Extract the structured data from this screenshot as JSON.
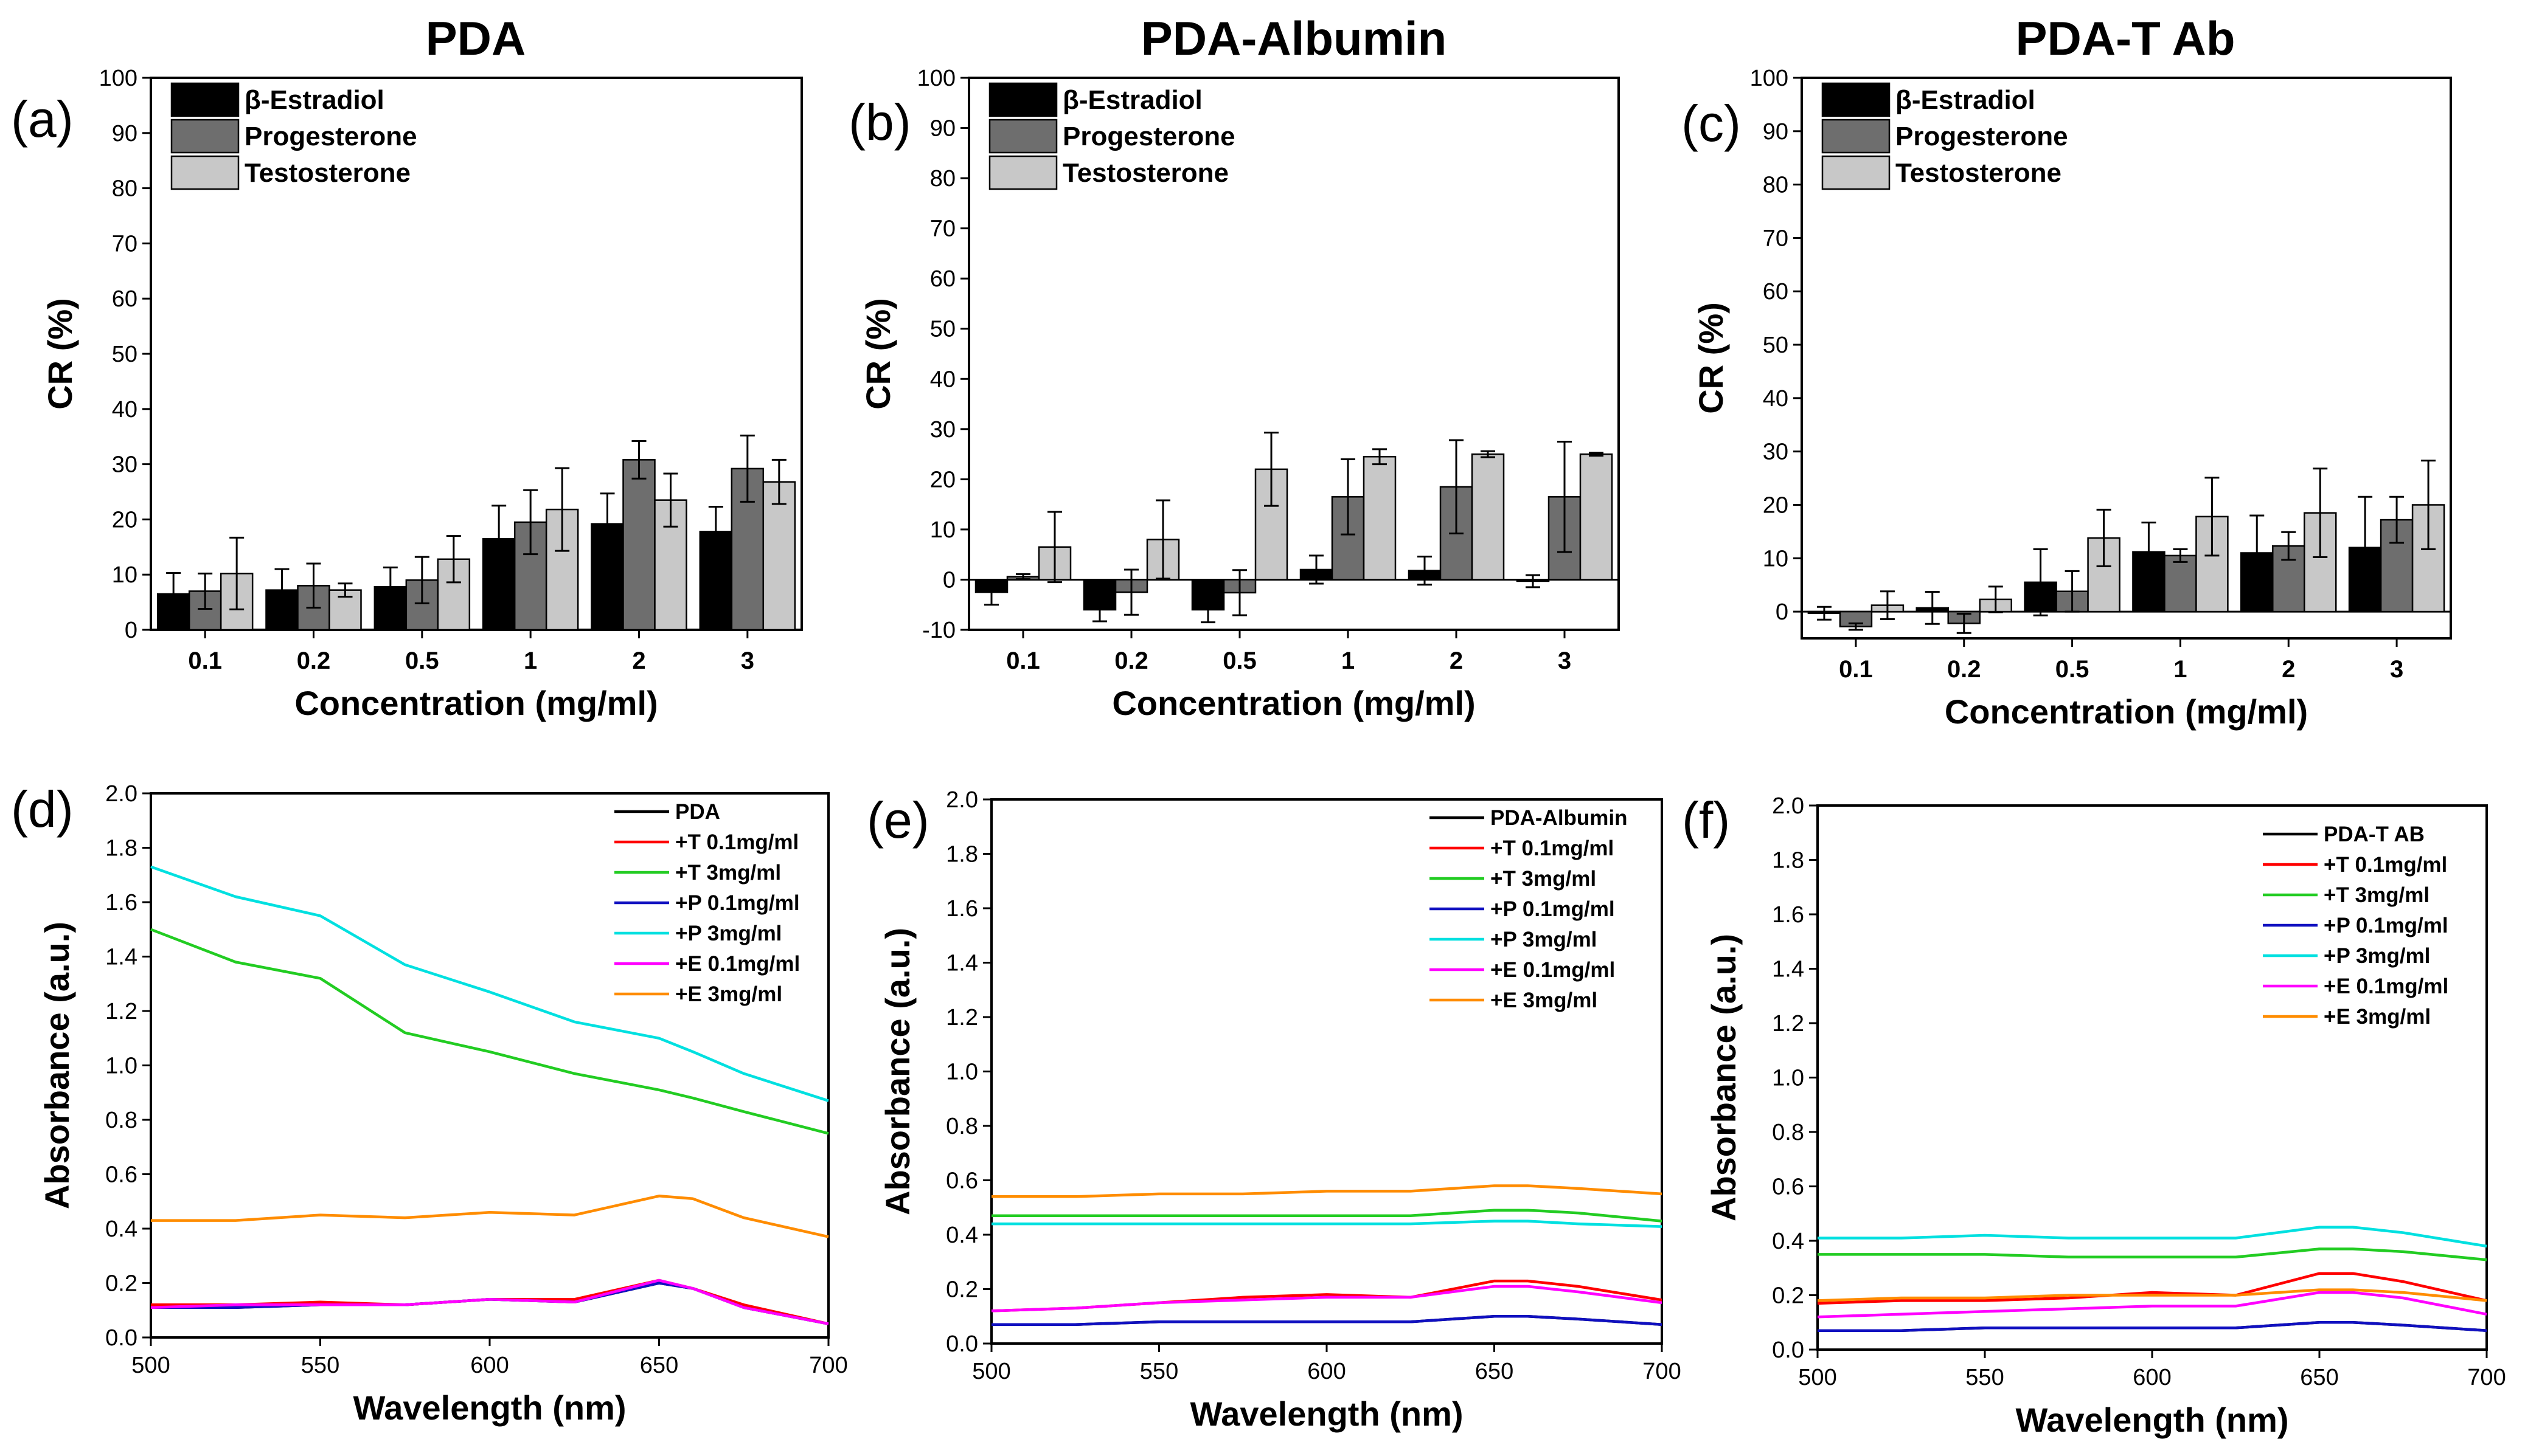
{
  "chart_data": [
    {
      "id": "a",
      "panel_label": "(a)",
      "type": "bar",
      "title": "PDA",
      "xlabel": "Concentration (mg/ml)",
      "ylabel": "CR (%)",
      "ylim": [
        0,
        100
      ],
      "yticks": [
        0,
        10,
        20,
        30,
        40,
        50,
        60,
        70,
        80,
        90,
        100
      ],
      "categories": [
        "0.1",
        "0.2",
        "0.5",
        "1",
        "2",
        "3"
      ],
      "series": [
        {
          "name": "β-Estradiol",
          "color": "#000000",
          "values": [
            6.5,
            7.2,
            7.8,
            16.5,
            19.2,
            17.8
          ],
          "errors": [
            3.8,
            3.8,
            3.5,
            6.0,
            5.5,
            4.5
          ]
        },
        {
          "name": "Progesterone",
          "color": "#6e6e6e",
          "values": [
            7.0,
            8.0,
            9.0,
            19.5,
            30.8,
            29.2
          ],
          "errors": [
            3.2,
            4.0,
            4.2,
            5.8,
            3.4,
            6.0
          ]
        },
        {
          "name": "Testosterone",
          "color": "#c8c8c8",
          "values": [
            10.2,
            7.2,
            12.8,
            21.8,
            23.5,
            26.8
          ],
          "errors": [
            6.5,
            1.2,
            4.2,
            7.5,
            4.8,
            4.0
          ]
        }
      ]
    },
    {
      "id": "b",
      "panel_label": "(b)",
      "type": "bar",
      "title": "PDA-Albumin",
      "xlabel": "Concentration (mg/ml)",
      "ylabel": "CR (%)",
      "ylim": [
        -10,
        100
      ],
      "yticks": [
        -10,
        0,
        10,
        20,
        30,
        40,
        50,
        60,
        70,
        80,
        90,
        100
      ],
      "categories": [
        "0.1",
        "0.2",
        "0.5",
        "1",
        "2",
        "3"
      ],
      "series": [
        {
          "name": "β-Estradiol",
          "color": "#000000",
          "values": [
            -2.5,
            -6.0,
            -6.0,
            2.0,
            1.8,
            -0.3
          ],
          "errors": [
            2.5,
            2.3,
            2.5,
            2.8,
            2.8,
            1.2
          ]
        },
        {
          "name": "Progesterone",
          "color": "#6e6e6e",
          "values": [
            0.6,
            -2.5,
            -2.6,
            16.5,
            18.5,
            16.5
          ],
          "errors": [
            0.5,
            4.5,
            4.5,
            7.5,
            9.3,
            11.0
          ]
        },
        {
          "name": "Testosterone",
          "color": "#c8c8c8",
          "values": [
            6.5,
            8.0,
            22.0,
            24.5,
            25.0,
            25.0
          ],
          "errors": [
            7.0,
            7.8,
            7.3,
            1.5,
            0.6,
            0.3
          ]
        }
      ]
    },
    {
      "id": "c",
      "panel_label": "(c)",
      "type": "bar",
      "title": "PDA-T Ab",
      "xlabel": "Concentration (mg/ml)",
      "ylabel": "CR (%)",
      "ylim": [
        -5,
        100
      ],
      "yticks": [
        0,
        10,
        20,
        30,
        40,
        50,
        60,
        70,
        80,
        90,
        100
      ],
      "categories": [
        "0.1",
        "0.2",
        "0.5",
        "1",
        "2",
        "3"
      ],
      "series": [
        {
          "name": "β-Estradiol",
          "color": "#000000",
          "values": [
            -0.3,
            0.7,
            5.5,
            11.2,
            11.0,
            12.0
          ],
          "errors": [
            1.2,
            3.0,
            6.2,
            5.5,
            7.0,
            9.5
          ]
        },
        {
          "name": "Progesterone",
          "color": "#6e6e6e",
          "values": [
            -2.8,
            -2.2,
            3.8,
            10.5,
            12.3,
            17.2
          ],
          "errors": [
            0.6,
            1.8,
            3.8,
            1.2,
            2.6,
            4.3
          ]
        },
        {
          "name": "Testosterone",
          "color": "#c8c8c8",
          "values": [
            1.2,
            2.3,
            13.8,
            17.8,
            18.5,
            20.0
          ],
          "errors": [
            2.6,
            2.4,
            5.3,
            7.3,
            8.3,
            8.3
          ]
        }
      ]
    },
    {
      "id": "d",
      "panel_label": "(d)",
      "type": "line",
      "title": "",
      "xlabel": "Wavelength (nm)",
      "ylabel": "Absorbance (a.u.)",
      "xlim": [
        500,
        700
      ],
      "ylim": [
        0,
        2.0
      ],
      "xticks": [
        500,
        550,
        600,
        650,
        700
      ],
      "yticks": [
        "0.0",
        "0.2",
        "0.4",
        "0.6",
        "0.8",
        "1.0",
        "1.2",
        "1.4",
        "1.6",
        "1.8",
        "2.0"
      ],
      "x": [
        500,
        525,
        550,
        575,
        600,
        625,
        650,
        660,
        675,
        700
      ],
      "series": [
        {
          "name": "PDA",
          "color": "#000000",
          "values": [
            0.11,
            0.11,
            0.12,
            0.12,
            0.14,
            0.13,
            0.2,
            0.18,
            0.11,
            0.05
          ]
        },
        {
          "name": "+T 0.1mg/ml",
          "color": "#ff0000",
          "values": [
            0.12,
            0.12,
            0.13,
            0.12,
            0.14,
            0.14,
            0.21,
            0.18,
            0.12,
            0.05
          ]
        },
        {
          "name": "+T    3mg/ml",
          "color": "#22cc22",
          "values": [
            1.5,
            1.38,
            1.32,
            1.12,
            1.05,
            0.97,
            0.91,
            0.88,
            0.83,
            0.75
          ]
        },
        {
          "name": "+P 0.1mg/ml",
          "color": "#1010c0",
          "values": [
            0.11,
            0.11,
            0.12,
            0.12,
            0.14,
            0.13,
            0.2,
            0.18,
            0.11,
            0.05
          ]
        },
        {
          "name": "+P    3mg/ml",
          "color": "#00e0e0",
          "values": [
            1.73,
            1.62,
            1.55,
            1.37,
            1.27,
            1.16,
            1.1,
            1.05,
            0.97,
            0.87
          ]
        },
        {
          "name": "+E 0.1mg/ml",
          "color": "#ff00ff",
          "values": [
            0.11,
            0.12,
            0.12,
            0.12,
            0.14,
            0.13,
            0.21,
            0.18,
            0.11,
            0.05
          ]
        },
        {
          "name": "+E    3mg/ml",
          "color": "#ff8c00",
          "values": [
            0.43,
            0.43,
            0.45,
            0.44,
            0.46,
            0.45,
            0.52,
            0.51,
            0.44,
            0.37
          ]
        }
      ]
    },
    {
      "id": "e",
      "panel_label": "(e)",
      "type": "line",
      "title": "",
      "xlabel": "Wavelength (nm)",
      "ylabel": "Absorbance (a.u.)",
      "xlim": [
        500,
        700
      ],
      "ylim": [
        0,
        2.0
      ],
      "xticks": [
        500,
        550,
        600,
        650,
        700
      ],
      "yticks": [
        "0.0",
        "0.2",
        "0.4",
        "0.6",
        "0.8",
        "1.0",
        "1.2",
        "1.4",
        "1.6",
        "1.8",
        "2.0"
      ],
      "x": [
        500,
        525,
        550,
        575,
        600,
        625,
        650,
        660,
        675,
        700
      ],
      "series": [
        {
          "name": "PDA-Albumin",
          "color": "#000000",
          "values": [
            0.07,
            0.07,
            0.08,
            0.08,
            0.08,
            0.08,
            0.1,
            0.1,
            0.09,
            0.07
          ]
        },
        {
          "name": "+T 0.1mg/ml",
          "color": "#ff0000",
          "values": [
            0.12,
            0.13,
            0.15,
            0.17,
            0.18,
            0.17,
            0.23,
            0.23,
            0.21,
            0.16
          ]
        },
        {
          "name": "+T    3mg/ml",
          "color": "#22cc22",
          "values": [
            0.47,
            0.47,
            0.47,
            0.47,
            0.47,
            0.47,
            0.49,
            0.49,
            0.48,
            0.45
          ]
        },
        {
          "name": "+P 0.1mg/ml",
          "color": "#1010c0",
          "values": [
            0.07,
            0.07,
            0.08,
            0.08,
            0.08,
            0.08,
            0.1,
            0.1,
            0.09,
            0.07
          ]
        },
        {
          "name": "+P    3mg/ml",
          "color": "#00e0e0",
          "values": [
            0.44,
            0.44,
            0.44,
            0.44,
            0.44,
            0.44,
            0.45,
            0.45,
            0.44,
            0.43
          ]
        },
        {
          "name": "+E 0.1mg/ml",
          "color": "#ff00ff",
          "values": [
            0.12,
            0.13,
            0.15,
            0.16,
            0.17,
            0.17,
            0.21,
            0.21,
            0.19,
            0.15
          ]
        },
        {
          "name": "+E    3mg/ml",
          "color": "#ff8c00",
          "values": [
            0.54,
            0.54,
            0.55,
            0.55,
            0.56,
            0.56,
            0.58,
            0.58,
            0.57,
            0.55
          ]
        }
      ]
    },
    {
      "id": "f",
      "panel_label": "(f)",
      "type": "line",
      "title": "",
      "xlabel": "Wavelength (nm)",
      "ylabel": "Absorbance (a.u.)",
      "xlim": [
        500,
        700
      ],
      "ylim": [
        0,
        2.0
      ],
      "xticks": [
        500,
        550,
        600,
        650,
        700
      ],
      "yticks": [
        "0.0",
        "0.2",
        "0.4",
        "0.6",
        "0.8",
        "1.0",
        "1.2",
        "1.4",
        "1.6",
        "1.8",
        "2.0"
      ],
      "x": [
        500,
        525,
        550,
        575,
        600,
        625,
        650,
        660,
        675,
        700
      ],
      "series": [
        {
          "name": "PDA-T AB",
          "color": "#000000",
          "values": [
            0.07,
            0.07,
            0.08,
            0.08,
            0.08,
            0.08,
            0.1,
            0.1,
            0.09,
            0.07
          ]
        },
        {
          "name": "+T 0.1mg/ml",
          "color": "#ff0000",
          "values": [
            0.17,
            0.18,
            0.18,
            0.19,
            0.21,
            0.2,
            0.28,
            0.28,
            0.25,
            0.18
          ]
        },
        {
          "name": "+T    3mg/ml",
          "color": "#22cc22",
          "values": [
            0.35,
            0.35,
            0.35,
            0.34,
            0.34,
            0.34,
            0.37,
            0.37,
            0.36,
            0.33
          ]
        },
        {
          "name": "+P 0.1mg/ml",
          "color": "#1010c0",
          "values": [
            0.07,
            0.07,
            0.08,
            0.08,
            0.08,
            0.08,
            0.1,
            0.1,
            0.09,
            0.07
          ]
        },
        {
          "name": "+P    3mg/ml",
          "color": "#00e0e0",
          "values": [
            0.41,
            0.41,
            0.42,
            0.41,
            0.41,
            0.41,
            0.45,
            0.45,
            0.43,
            0.38
          ]
        },
        {
          "name": "+E 0.1mg/ml",
          "color": "#ff00ff",
          "values": [
            0.12,
            0.13,
            0.14,
            0.15,
            0.16,
            0.16,
            0.21,
            0.21,
            0.19,
            0.13
          ]
        },
        {
          "name": "+E    3mg/ml",
          "color": "#ff8c00",
          "values": [
            0.18,
            0.19,
            0.19,
            0.2,
            0.2,
            0.2,
            0.22,
            0.22,
            0.21,
            0.18
          ]
        }
      ]
    }
  ]
}
